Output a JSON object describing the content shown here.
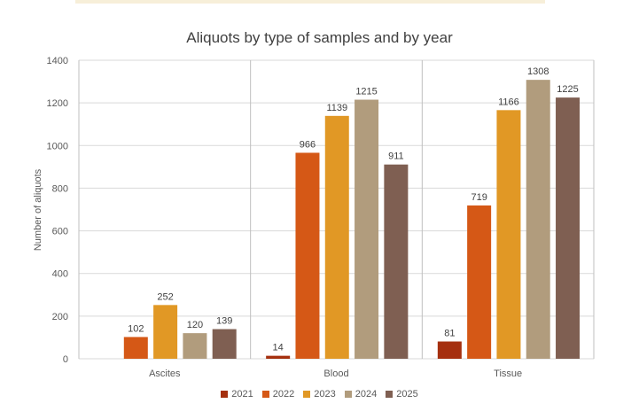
{
  "chart_data": {
    "type": "bar",
    "title": "Aliquots by type of samples and by year",
    "xlabel": "",
    "ylabel": "Number of aliquots",
    "ylim": [
      0,
      1400
    ],
    "yticks": [
      0,
      200,
      400,
      600,
      800,
      1000,
      1200,
      1400
    ],
    "grid": true,
    "legend_position": "bottom",
    "categories": [
      "Ascites",
      "Blood",
      "Tissue"
    ],
    "series": [
      {
        "name": "2021",
        "color": "#a5300f",
        "values": [
          null,
          14,
          81
        ]
      },
      {
        "name": "2022",
        "color": "#d55816",
        "values": [
          102,
          966,
          719
        ]
      },
      {
        "name": "2023",
        "color": "#e19825",
        "values": [
          252,
          1139,
          1166
        ]
      },
      {
        "name": "2024",
        "color": "#b19c7d",
        "values": [
          120,
          1215,
          1308
        ]
      },
      {
        "name": "2025",
        "color": "#7f5f52",
        "values": [
          139,
          911,
          1225
        ]
      }
    ]
  }
}
